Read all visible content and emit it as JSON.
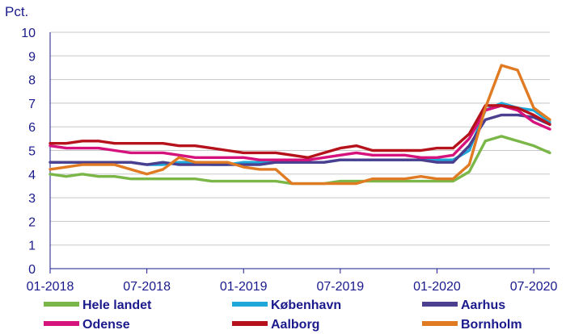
{
  "chart_data": {
    "type": "line",
    "unit_label": "Pct.",
    "ylim": [
      0,
      10
    ],
    "yticks": [
      0,
      1,
      2,
      3,
      4,
      5,
      6,
      7,
      8,
      9,
      10
    ],
    "x": [
      "2018-01",
      "2018-02",
      "2018-03",
      "2018-04",
      "2018-05",
      "2018-06",
      "2018-07",
      "2018-08",
      "2018-09",
      "2018-10",
      "2018-11",
      "2018-12",
      "2019-01",
      "2019-02",
      "2019-03",
      "2019-04",
      "2019-05",
      "2019-06",
      "2019-07",
      "2019-08",
      "2019-09",
      "2019-10",
      "2019-11",
      "2019-12",
      "2020-01",
      "2020-02",
      "2020-03",
      "2020-04",
      "2020-05",
      "2020-06",
      "2020-07",
      "2020-08"
    ],
    "xticks": [
      {
        "index": 0,
        "label": "01-2018"
      },
      {
        "index": 6,
        "label": "07-2018"
      },
      {
        "index": 12,
        "label": "01-2019"
      },
      {
        "index": 18,
        "label": "07-2019"
      },
      {
        "index": 24,
        "label": "01-2020"
      },
      {
        "index": 30,
        "label": "07-2020"
      }
    ],
    "grid": true,
    "legend_position": "bottom",
    "series": [
      {
        "name": "Hele landet",
        "color": "#7ab648",
        "values": [
          4.0,
          3.9,
          4.0,
          3.9,
          3.9,
          3.8,
          3.8,
          3.8,
          3.8,
          3.8,
          3.7,
          3.7,
          3.7,
          3.7,
          3.7,
          3.6,
          3.6,
          3.6,
          3.7,
          3.7,
          3.7,
          3.7,
          3.7,
          3.7,
          3.7,
          3.7,
          4.1,
          5.4,
          5.6,
          5.4,
          5.2,
          4.9
        ]
      },
      {
        "name": "København",
        "color": "#1ea7d8",
        "values": [
          4.5,
          4.5,
          4.5,
          4.5,
          4.5,
          4.5,
          4.4,
          4.4,
          4.5,
          4.5,
          4.4,
          4.4,
          4.5,
          4.5,
          4.5,
          4.5,
          4.5,
          4.5,
          4.6,
          4.6,
          4.6,
          4.6,
          4.6,
          4.6,
          4.6,
          4.6,
          5.0,
          6.7,
          7.0,
          6.8,
          6.7,
          6.2
        ]
      },
      {
        "name": "Aarhus",
        "color": "#4b3f8f",
        "values": [
          4.5,
          4.5,
          4.5,
          4.5,
          4.5,
          4.5,
          4.4,
          4.5,
          4.4,
          4.4,
          4.4,
          4.4,
          4.4,
          4.4,
          4.5,
          4.5,
          4.5,
          4.5,
          4.6,
          4.6,
          4.6,
          4.6,
          4.6,
          4.6,
          4.5,
          4.5,
          5.2,
          6.3,
          6.5,
          6.5,
          6.4,
          6.1
        ]
      },
      {
        "name": "Odense",
        "color": "#d6127c",
        "values": [
          5.2,
          5.1,
          5.1,
          5.1,
          5.0,
          4.9,
          4.9,
          4.9,
          4.8,
          4.7,
          4.7,
          4.7,
          4.7,
          4.6,
          4.6,
          4.6,
          4.6,
          4.7,
          4.8,
          4.9,
          4.8,
          4.8,
          4.8,
          4.7,
          4.7,
          4.8,
          5.5,
          6.7,
          6.9,
          6.7,
          6.2,
          5.9
        ]
      },
      {
        "name": "Aalborg",
        "color": "#b5121b",
        "values": [
          5.3,
          5.3,
          5.4,
          5.4,
          5.3,
          5.3,
          5.3,
          5.3,
          5.2,
          5.2,
          5.1,
          5.0,
          4.9,
          4.9,
          4.9,
          4.8,
          4.7,
          4.9,
          5.1,
          5.2,
          5.0,
          5.0,
          5.0,
          5.0,
          5.1,
          5.1,
          5.7,
          6.9,
          6.9,
          6.8,
          6.5,
          6.1
        ]
      },
      {
        "name": "Bornholm",
        "color": "#e07b24",
        "values": [
          4.2,
          4.3,
          4.4,
          4.4,
          4.4,
          4.2,
          4.0,
          4.2,
          4.7,
          4.5,
          4.5,
          4.5,
          4.3,
          4.2,
          4.2,
          3.6,
          3.6,
          3.6,
          3.6,
          3.6,
          3.8,
          3.8,
          3.8,
          3.9,
          3.8,
          3.8,
          4.4,
          6.8,
          8.6,
          8.4,
          6.8,
          6.3
        ]
      }
    ]
  }
}
